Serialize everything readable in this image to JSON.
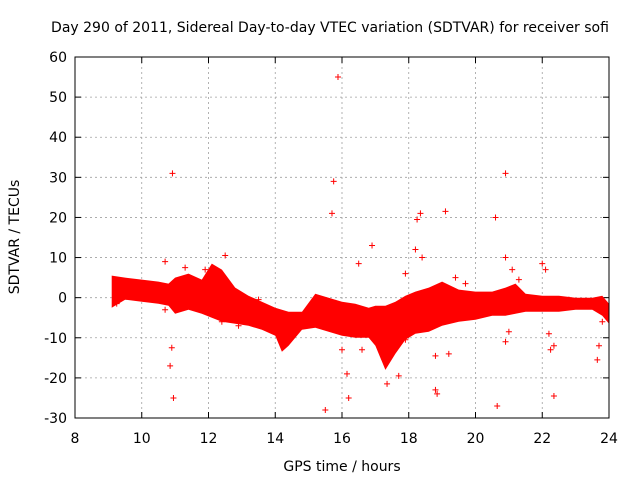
{
  "chart_data": {
    "type": "scatter",
    "title": "Day 290 of 2011, Sidereal Day-to-day VTEC variation (SDTVAR) for receiver sofi",
    "xlabel": "GPS time / hours",
    "ylabel": "SDTVAR / TECUs",
    "xlim": [
      8,
      24
    ],
    "ylim": [
      -30,
      60
    ],
    "xticks": [
      8,
      10,
      12,
      14,
      16,
      18,
      20,
      22,
      24
    ],
    "yticks": [
      -30,
      -20,
      -10,
      0,
      10,
      20,
      30,
      40,
      50,
      60
    ],
    "grid": true,
    "marker": "+",
    "color": "#ff0000",
    "dense_band": {
      "x": [
        9.1,
        9.5,
        10.0,
        10.5,
        10.8,
        11.0,
        11.4,
        11.8,
        12.1,
        12.4,
        12.8,
        13.2,
        13.6,
        14.0,
        14.2,
        14.4,
        14.8,
        15.2,
        15.6,
        16.0,
        16.4,
        16.8,
        17.0,
        17.3,
        17.6,
        17.9,
        18.2,
        18.6,
        19.0,
        19.5,
        20.0,
        20.5,
        20.9,
        21.2,
        21.5,
        22.0,
        22.5,
        23.0,
        23.5,
        23.8,
        24.0
      ],
      "upper": [
        5.5,
        5.0,
        4.5,
        4.0,
        3.5,
        5.0,
        6.0,
        4.5,
        8.5,
        7.0,
        2.5,
        0.5,
        -1.0,
        -2.5,
        -3.0,
        -3.5,
        -3.5,
        1.0,
        0.0,
        -1.0,
        -1.5,
        -2.5,
        -2.0,
        -2.0,
        -1.0,
        0.5,
        1.5,
        2.5,
        4.0,
        2.0,
        1.5,
        1.5,
        2.5,
        3.5,
        1.0,
        0.5,
        0.5,
        0.0,
        0.0,
        0.5,
        -1.5
      ],
      "lower": [
        -2.5,
        -0.5,
        -1.0,
        -1.5,
        -2.0,
        -4.0,
        -3.0,
        -4.0,
        -5.0,
        -6.0,
        -6.5,
        -7.0,
        -8.0,
        -9.5,
        -13.5,
        -12.0,
        -8.0,
        -7.5,
        -8.5,
        -9.5,
        -10.0,
        -10.0,
        -12.0,
        -18.0,
        -14.0,
        -10.5,
        -9.0,
        -8.5,
        -7.0,
        -6.0,
        -5.5,
        -4.5,
        -4.5,
        -4.0,
        -3.5,
        -3.5,
        -3.5,
        -3.0,
        -3.0,
        -4.5,
        -6.5
      ]
    },
    "points": [
      [
        10.92,
        31.0
      ],
      [
        10.95,
        -25.0
      ],
      [
        10.9,
        -12.5
      ],
      [
        10.85,
        -17.0
      ],
      [
        10.7,
        -3.0
      ],
      [
        10.7,
        9.0
      ],
      [
        11.3,
        7.5
      ],
      [
        12.5,
        10.5
      ],
      [
        12.4,
        -6.0
      ],
      [
        12.9,
        -7.0
      ],
      [
        15.5,
        -28.0
      ],
      [
        15.7,
        21.0
      ],
      [
        15.75,
        29.0
      ],
      [
        15.88,
        55.0
      ],
      [
        16.2,
        -25.0
      ],
      [
        16.15,
        -19.0
      ],
      [
        16.0,
        -13.0
      ],
      [
        16.5,
        8.5
      ],
      [
        16.6,
        -13.0
      ],
      [
        16.9,
        13.0
      ],
      [
        17.2,
        -10.0
      ],
      [
        17.35,
        -21.5
      ],
      [
        17.7,
        -19.5
      ],
      [
        17.9,
        -10.5
      ],
      [
        17.9,
        6.0
      ],
      [
        18.2,
        12.0
      ],
      [
        18.25,
        19.5
      ],
      [
        18.35,
        21.0
      ],
      [
        18.4,
        10.0
      ],
      [
        18.8,
        -14.5
      ],
      [
        18.8,
        -23.0
      ],
      [
        18.85,
        -24.0
      ],
      [
        19.1,
        21.5
      ],
      [
        19.2,
        -14.0
      ],
      [
        19.4,
        5.0
      ],
      [
        20.6,
        20.0
      ],
      [
        20.65,
        -27.0
      ],
      [
        20.9,
        31.0
      ],
      [
        20.9,
        -11.0
      ],
      [
        21.0,
        -8.5
      ],
      [
        20.9,
        10.0
      ],
      [
        21.1,
        7.0
      ],
      [
        22.0,
        8.5
      ],
      [
        22.1,
        7.0
      ],
      [
        22.2,
        -9.0
      ],
      [
        22.25,
        -13.0
      ],
      [
        22.35,
        -12.0
      ],
      [
        22.35,
        -24.5
      ],
      [
        23.65,
        -15.5
      ],
      [
        23.7,
        -12.0
      ],
      [
        23.8,
        -6.0
      ],
      [
        9.25,
        -1.5
      ],
      [
        9.6,
        0.5
      ],
      [
        11.9,
        7.0
      ],
      [
        13.5,
        -0.5
      ],
      [
        14.9,
        -5.5
      ],
      [
        16.45,
        -6.0
      ],
      [
        17.55,
        -11.0
      ],
      [
        19.7,
        3.5
      ],
      [
        21.3,
        4.5
      ],
      [
        22.8,
        -0.5
      ],
      [
        23.4,
        -2.0
      ]
    ]
  }
}
